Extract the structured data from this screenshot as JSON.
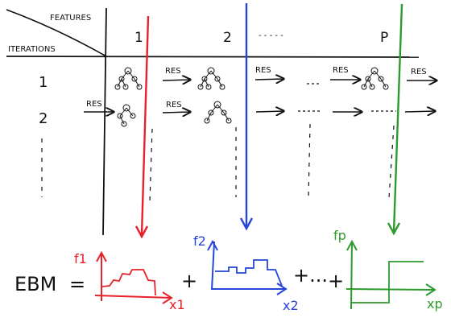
{
  "header": {
    "features_label": "FEATURES",
    "iterations_label": "ITERATIONS",
    "columns": [
      "1",
      "2",
      "- - - - -",
      "P"
    ]
  },
  "rows": [
    {
      "label": "1"
    },
    {
      "label": "2"
    }
  ],
  "edge_label": "RES",
  "formula": {
    "lhs": "EBM",
    "equals": "=",
    "plus": "+",
    "plus_dots": "+...",
    "plots": [
      {
        "y_label": "f1",
        "x_label": "x1",
        "color": "#e8202a"
      },
      {
        "y_label": "f2",
        "x_label": "x2",
        "color": "#2645d9"
      },
      {
        "y_label": "fp",
        "x_label": "xp",
        "color": "#2d9a2d"
      }
    ]
  },
  "colors": {
    "ink": "#111111",
    "red": "#e8202a",
    "blue": "#2645d9",
    "green": "#2d9a2d"
  },
  "icons": [
    "tree-icon",
    "arrow-icon"
  ]
}
